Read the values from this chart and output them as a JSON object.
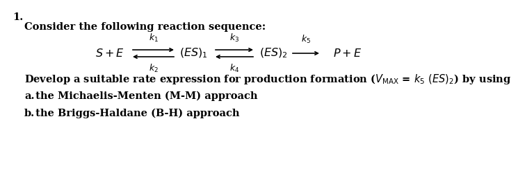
{
  "number": "1.",
  "consider_text": "Consider the following reaction sequence:",
  "develop_text": "Develop a suitable rate expression for production formation ($V_{\\mathrm{MAX}}$ = $k_5$ $(ES)_2$) by using",
  "part_a_bold": "a.",
  "part_a_rest": " the Michaelis-Menten (M-M) approach",
  "part_b_bold": "b.",
  "part_b_rest": " the Briggs-Haldane (B-H) approach",
  "bg_color": "#ffffff",
  "text_color": "#000000",
  "font_size_main": 10.5,
  "font_size_rxn": 11.5,
  "font_size_k": 9.0
}
